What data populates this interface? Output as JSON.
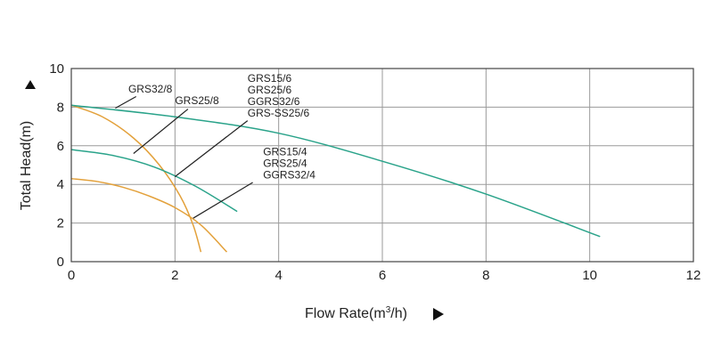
{
  "chart_data": {
    "type": "line",
    "title": "",
    "xlabel": "Flow Rate(m",
    "xlabel_sup": "3",
    "xlabel_tail": "/h)",
    "ylabel": "Total Head(m)",
    "xlim": [
      0,
      12
    ],
    "ylim": [
      0,
      10
    ],
    "x_ticks": [
      0,
      2,
      4,
      6,
      8,
      10,
      12
    ],
    "y_ticks": [
      0,
      2,
      4,
      6,
      8,
      10
    ],
    "grid": true,
    "legend": "annotations with leader lines",
    "colors": {
      "orange": "#e3a13b",
      "green": "#2aa38a"
    },
    "series": [
      {
        "color": "orange",
        "points": [
          [
            0,
            8.1
          ],
          [
            0.6,
            7.5
          ],
          [
            1.2,
            6.4
          ],
          [
            1.7,
            5.0
          ],
          [
            2.1,
            3.4
          ],
          [
            2.35,
            1.9
          ],
          [
            2.5,
            0.5
          ]
        ]
      },
      {
        "color": "orange",
        "points": [
          [
            0,
            4.3
          ],
          [
            0.5,
            4.15
          ],
          [
            1.0,
            3.85
          ],
          [
            1.5,
            3.4
          ],
          [
            2.0,
            2.8
          ],
          [
            2.5,
            1.9
          ],
          [
            3.0,
            0.5
          ]
        ]
      },
      {
        "color": "green",
        "points": [
          [
            0,
            8.1
          ],
          [
            2,
            7.5
          ],
          [
            4,
            6.65
          ],
          [
            6,
            5.2
          ],
          [
            8,
            3.5
          ],
          [
            10.2,
            1.3
          ]
        ]
      },
      {
        "color": "green",
        "points": [
          [
            0,
            5.8
          ],
          [
            0.8,
            5.5
          ],
          [
            1.6,
            4.9
          ],
          [
            2.4,
            3.9
          ],
          [
            3.2,
            2.6
          ]
        ]
      }
    ],
    "annotations": [
      {
        "lines": [
          "GRS32/8"
        ],
        "text_at": [
          1.1,
          8.75
        ],
        "from": [
          1.25,
          8.55
        ],
        "to": [
          0.85,
          7.95
        ]
      },
      {
        "lines": [
          "GRS25/8"
        ],
        "text_at": [
          2.0,
          8.15
        ],
        "from": [
          2.25,
          7.9
        ],
        "to": [
          1.2,
          5.6
        ]
      },
      {
        "lines": [
          "GRS15/6",
          "GRS25/6",
          "GGRS32/6",
          "GRS-SS25/6"
        ],
        "text_at": [
          3.4,
          9.3
        ],
        "from": [
          3.4,
          7.3
        ],
        "to": [
          2.0,
          4.4
        ]
      },
      {
        "lines": [
          "GRS15/4",
          "GRS25/4",
          "GGRS32/4"
        ],
        "text_at": [
          3.7,
          5.5
        ],
        "from": [
          3.5,
          4.1
        ],
        "to": [
          2.35,
          2.25
        ]
      }
    ]
  }
}
